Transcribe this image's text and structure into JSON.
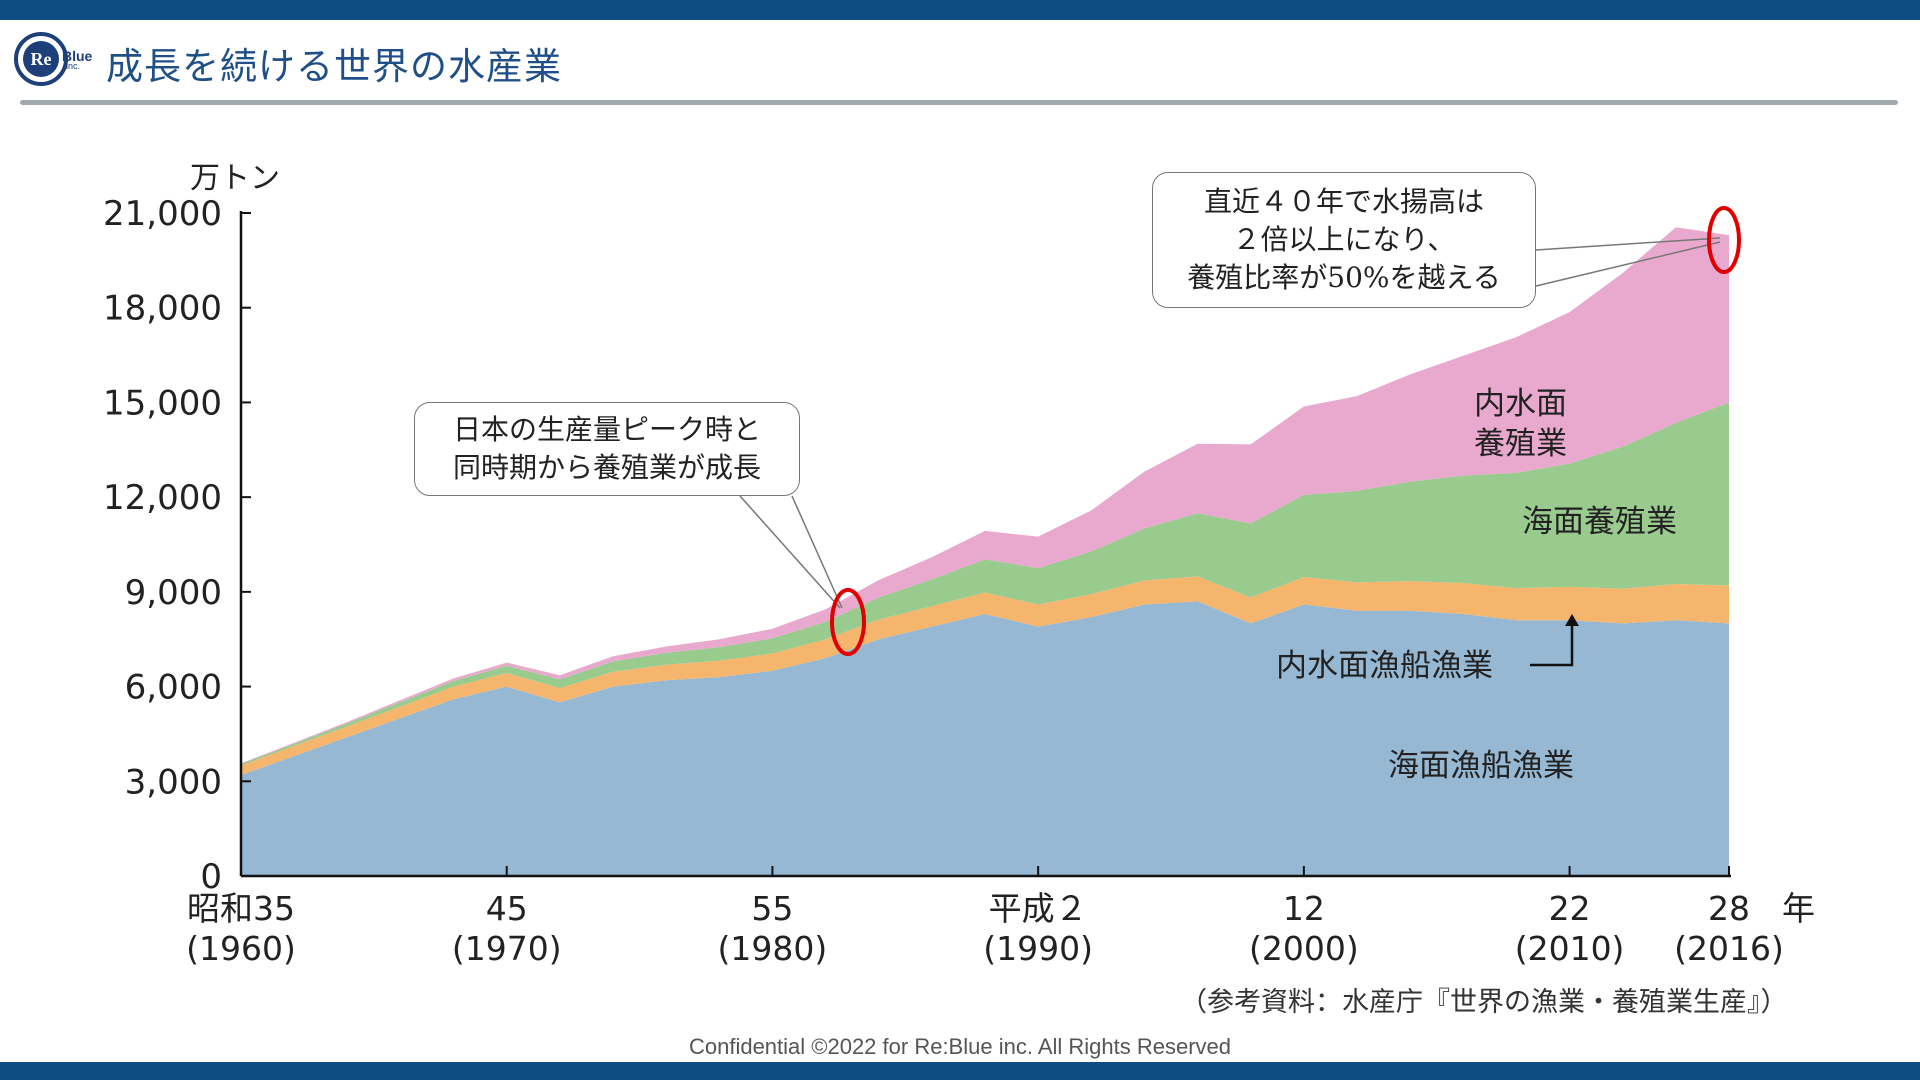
{
  "header": {
    "title": "成長を続ける世界の水産業",
    "logo_main": "Re",
    "logo_tag": "Blue",
    "logo_sub": "inc."
  },
  "callouts": {
    "left_lines": [
      "日本の生産量ピーク時と",
      "同時期から養殖業が成長"
    ],
    "right_lines": [
      "直近４０年で水揚高は",
      "２倍以上になり、",
      "養殖比率が50%を越える"
    ]
  },
  "footnote": "（参考資料：水産庁『世界の漁業・養殖業生産』）",
  "footer": "Confidential ©2022 for Re:Blue inc. All Rights Reserved",
  "colors": {
    "marine_capture": "#97b8d3",
    "inland_capture": "#f5b56d",
    "marine_aquaculture": "#99ca8e",
    "inland_aquaculture": "#e9a9ce",
    "highlight": "#e00000",
    "brand": "#0f4c81"
  },
  "chart_data": {
    "type": "area",
    "stacked": true,
    "unit_label": "万トン",
    "x_unit_label": "年",
    "xlim": [
      1960,
      2016
    ],
    "ylim": [
      0,
      21000
    ],
    "yticks": [
      "0",
      "3,000",
      "6,000",
      "9,000",
      "12,000",
      "15,000",
      "18,000",
      "21,000"
    ],
    "xticks": [
      {
        "x": 1960,
        "line1": "昭和35",
        "line2": "(1960)"
      },
      {
        "x": 1970,
        "line1": "45",
        "line2": "(1970)"
      },
      {
        "x": 1980,
        "line1": "55",
        "line2": "(1980)"
      },
      {
        "x": 1990,
        "line1": "平成２",
        "line2": "(1990)"
      },
      {
        "x": 2000,
        "line1": "12",
        "line2": "(2000)"
      },
      {
        "x": 2010,
        "line1": "22",
        "line2": "(2010)"
      },
      {
        "x": 2016,
        "line1": "28",
        "line2": "(2016)"
      }
    ],
    "x": [
      1960,
      1962,
      1964,
      1966,
      1968,
      1970,
      1972,
      1974,
      1976,
      1978,
      1980,
      1982,
      1984,
      1986,
      1988,
      1990,
      1992,
      1994,
      1996,
      1998,
      2000,
      2002,
      2004,
      2006,
      2008,
      2010,
      2012,
      2014,
      2016
    ],
    "series": [
      {
        "name": "海面漁船漁業",
        "values": [
          3200,
          3800,
          4400,
          5000,
          5600,
          6000,
          5500,
          6000,
          6200,
          6300,
          6500,
          6900,
          7500,
          7900,
          8300,
          7900,
          8200,
          8600,
          8700,
          8000,
          8600,
          8400,
          8400,
          8300,
          8100,
          8100,
          8000,
          8100,
          8000
        ]
      },
      {
        "name": "内水面漁船漁業",
        "values": [
          300,
          320,
          340,
          370,
          400,
          430,
          450,
          470,
          490,
          520,
          550,
          600,
          620,
          650,
          680,
          700,
          730,
          760,
          790,
          820,
          870,
          900,
          940,
          980,
          1020,
          1060,
          1100,
          1150,
          1200
        ]
      },
      {
        "name": "海面養殖業",
        "values": [
          50,
          70,
          100,
          140,
          180,
          230,
          280,
          330,
          380,
          430,
          480,
          550,
          700,
          850,
          1050,
          1150,
          1350,
          1650,
          2000,
          2350,
          2600,
          2900,
          3150,
          3400,
          3650,
          3900,
          4500,
          5100,
          5800
        ]
      },
      {
        "name": "内水面養殖業",
        "values": [
          20,
          30,
          40,
          60,
          80,
          100,
          130,
          160,
          200,
          250,
          300,
          400,
          550,
          700,
          900,
          1000,
          1300,
          1800,
          2200,
          2500,
          2800,
          3000,
          3400,
          3800,
          4300,
          4800,
          5500,
          6200,
          5300
        ]
      }
    ]
  }
}
